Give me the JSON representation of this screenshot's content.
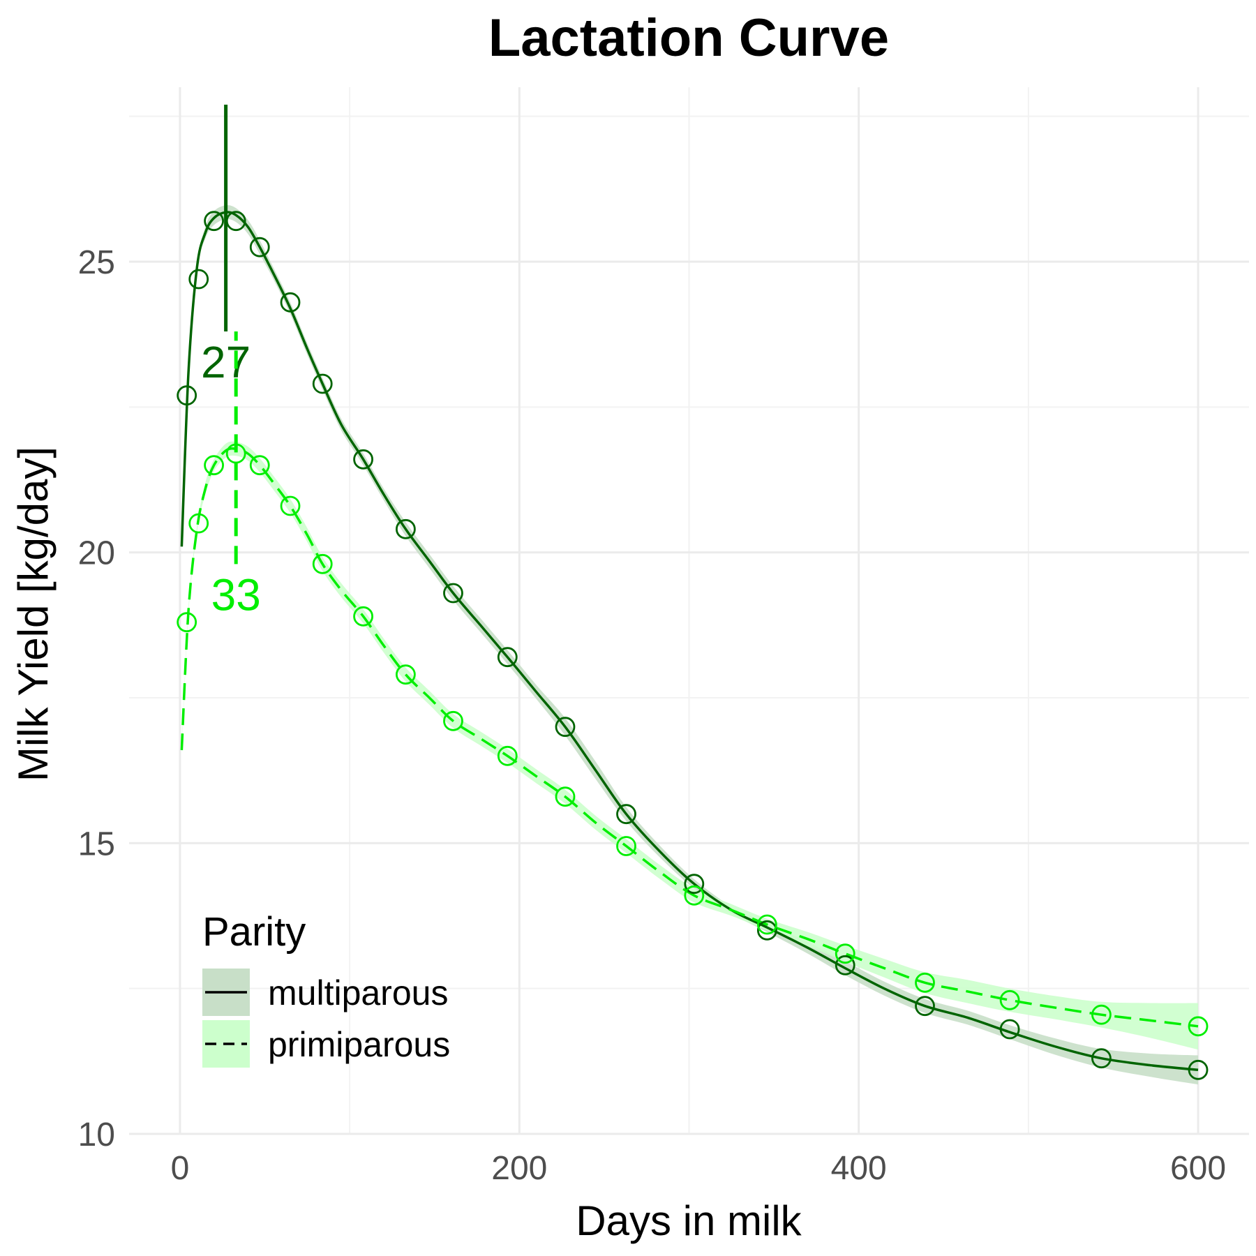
{
  "chart_data": {
    "type": "line",
    "title": "Lactation Curve",
    "xlabel": "Days in milk",
    "ylabel": "Milk Yield [kg/day]",
    "xlim": [
      -30,
      630
    ],
    "ylim": [
      10,
      28
    ],
    "x_ticks": [
      0,
      200,
      400,
      600
    ],
    "x_tick_labels": [
      "0",
      "200",
      "400",
      "600"
    ],
    "y_ticks": [
      10,
      15,
      20,
      25
    ],
    "y_tick_labels": [
      "10",
      "15",
      "20",
      "25"
    ],
    "grid": true,
    "legend": {
      "title": "Parity",
      "position": "bottom-left"
    },
    "series": [
      {
        "name": "multiparous",
        "color": "#006400",
        "ribbon_color": "#c8dfc8",
        "line_style": "solid",
        "points_x": [
          4,
          11,
          20,
          33,
          47,
          65,
          84,
          108,
          133,
          161,
          193,
          227,
          263,
          303,
          346,
          392,
          439,
          489,
          543,
          600
        ],
        "points_y": [
          22.7,
          24.7,
          25.7,
          25.7,
          25.25,
          24.3,
          22.9,
          21.6,
          20.4,
          19.3,
          18.2,
          17.0,
          15.5,
          14.3,
          13.5,
          12.9,
          12.2,
          11.8,
          11.3,
          11.1
        ],
        "curve_x": [
          1,
          5,
          10,
          15,
          20,
          27,
          33,
          40,
          47,
          55,
          65,
          75,
          84,
          95,
          108,
          120,
          133,
          147,
          161,
          177,
          193,
          210,
          227,
          245,
          263,
          283,
          303,
          325,
          346,
          370,
          392,
          415,
          439,
          464,
          489,
          516,
          543,
          572,
          600
        ],
        "curve_y": [
          20.1,
          23.1,
          24.9,
          25.5,
          25.75,
          25.85,
          25.8,
          25.6,
          25.25,
          24.8,
          24.2,
          23.5,
          22.9,
          22.2,
          21.6,
          21.0,
          20.4,
          19.85,
          19.3,
          18.75,
          18.2,
          17.6,
          17.0,
          16.25,
          15.5,
          14.85,
          14.3,
          13.85,
          13.55,
          13.2,
          12.85,
          12.5,
          12.2,
          12.0,
          11.75,
          11.5,
          11.3,
          11.18,
          11.1
        ],
        "ribbon_halfwidth": [
          0.05,
          0.05,
          0.05,
          0.1,
          0.12,
          0.12,
          0.12,
          0.12,
          0.12,
          0.1,
          0.1,
          0.1,
          0.1,
          0.1,
          0.1,
          0.1,
          0.12,
          0.12,
          0.12,
          0.12,
          0.12,
          0.12,
          0.15,
          0.15,
          0.12,
          0.1,
          0.08,
          0.06,
          0.08,
          0.1,
          0.12,
          0.12,
          0.12,
          0.12,
          0.12,
          0.14,
          0.16,
          0.2,
          0.25
        ],
        "peak_day": 27,
        "peak_label": "27",
        "peak_line_y": [
          23.8,
          27.7
        ]
      },
      {
        "name": "primiparous",
        "color": "#00ee00",
        "ribbon_color": "#ccffcc",
        "line_style": "dashed",
        "points_x": [
          4,
          11,
          20,
          33,
          47,
          65,
          84,
          108,
          133,
          161,
          193,
          227,
          263,
          303,
          346,
          392,
          439,
          489,
          543,
          600
        ],
        "points_y": [
          18.8,
          20.5,
          21.5,
          21.7,
          21.5,
          20.8,
          19.8,
          18.9,
          17.9,
          17.1,
          16.5,
          15.8,
          14.95,
          14.1,
          13.6,
          13.1,
          12.6,
          12.3,
          12.05,
          11.85
        ],
        "curve_x": [
          1,
          5,
          10,
          15,
          20,
          27,
          33,
          40,
          47,
          55,
          65,
          75,
          84,
          95,
          108,
          120,
          133,
          147,
          161,
          177,
          193,
          210,
          227,
          245,
          263,
          283,
          303,
          325,
          346,
          370,
          392,
          415,
          439,
          464,
          489,
          516,
          543,
          572,
          600
        ],
        "curve_y": [
          16.6,
          19.0,
          20.4,
          21.1,
          21.5,
          21.75,
          21.78,
          21.7,
          21.5,
          21.2,
          20.8,
          20.3,
          19.8,
          19.35,
          18.9,
          18.4,
          17.9,
          17.5,
          17.1,
          16.8,
          16.5,
          16.15,
          15.8,
          15.35,
          14.95,
          14.5,
          14.1,
          13.85,
          13.6,
          13.35,
          13.1,
          12.85,
          12.6,
          12.45,
          12.3,
          12.17,
          12.05,
          11.95,
          11.85
        ],
        "ribbon_halfwidth": [
          0.05,
          0.05,
          0.05,
          0.1,
          0.1,
          0.12,
          0.12,
          0.12,
          0.12,
          0.12,
          0.12,
          0.12,
          0.12,
          0.12,
          0.12,
          0.12,
          0.12,
          0.12,
          0.12,
          0.12,
          0.12,
          0.12,
          0.12,
          0.12,
          0.12,
          0.12,
          0.12,
          0.1,
          0.1,
          0.12,
          0.14,
          0.16,
          0.18,
          0.2,
          0.2,
          0.2,
          0.22,
          0.3,
          0.4
        ],
        "peak_day": 33,
        "peak_label": "33",
        "peak_line_y": [
          19.8,
          23.8
        ]
      }
    ]
  }
}
